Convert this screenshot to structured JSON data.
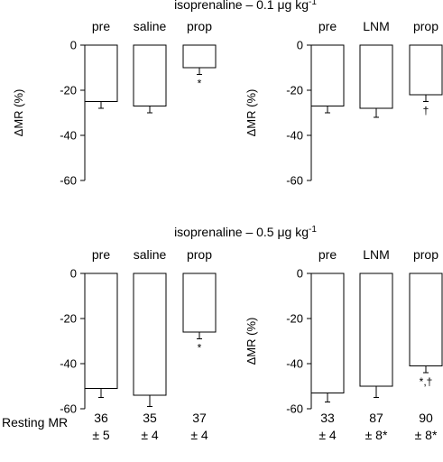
{
  "chart_data": [
    {
      "type": "bar",
      "panel": "top-left",
      "title": "isoprenaline – 0.1 μg kg",
      "title_superscript": "-1",
      "ylabel": "ΔMR (%)",
      "ylim": [
        -60,
        0
      ],
      "yticks": [
        "0",
        "-20",
        "-40",
        "-60"
      ],
      "categories": [
        "pre",
        "saline",
        "prop"
      ],
      "values": [
        -25,
        -27,
        -10
      ],
      "errors": [
        3,
        3,
        3
      ],
      "annotations": [
        "",
        "",
        "*"
      ]
    },
    {
      "type": "bar",
      "panel": "top-right",
      "title": "",
      "ylabel": "ΔMR (%)",
      "ylim": [
        -60,
        0
      ],
      "yticks": [
        "0",
        "-20",
        "-40",
        "-60"
      ],
      "categories": [
        "pre",
        "LNM",
        "prop"
      ],
      "values": [
        -27,
        -28,
        -22
      ],
      "errors": [
        3,
        4,
        3
      ],
      "annotations": [
        "",
        "",
        "†"
      ]
    },
    {
      "type": "bar",
      "panel": "bottom-left",
      "title": "isoprenaline – 0.5 μg kg",
      "title_superscript": "-1",
      "ylabel": "",
      "ylim": [
        -60,
        0
      ],
      "yticks": [
        "0",
        "-20",
        "-40",
        "-60"
      ],
      "categories": [
        "pre",
        "saline",
        "prop"
      ],
      "values": [
        -51,
        -54,
        -26
      ],
      "errors": [
        4,
        5,
        3
      ],
      "annotations": [
        "",
        "",
        "*"
      ]
    },
    {
      "type": "bar",
      "panel": "bottom-right",
      "title": "",
      "ylabel": "ΔMR (%)",
      "ylim": [
        -60,
        0
      ],
      "yticks": [
        "0",
        "-20",
        "-40",
        "-60"
      ],
      "categories": [
        "pre",
        "LNM",
        "prop"
      ],
      "values": [
        -53,
        -50,
        -41
      ],
      "errors": [
        4,
        5,
        3
      ],
      "annotations": [
        "",
        "",
        "*,†"
      ]
    }
  ],
  "resting_mr": {
    "label": "Resting MR",
    "left": [
      {
        "mean": "36",
        "sem": "± 5"
      },
      {
        "mean": "35",
        "sem": "± 4"
      },
      {
        "mean": "37",
        "sem": "± 4"
      }
    ],
    "right": [
      {
        "mean": "33",
        "sem": "± 4"
      },
      {
        "mean": "87",
        "sem": "± 8*"
      },
      {
        "mean": "90",
        "sem": "± 8*"
      }
    ]
  }
}
